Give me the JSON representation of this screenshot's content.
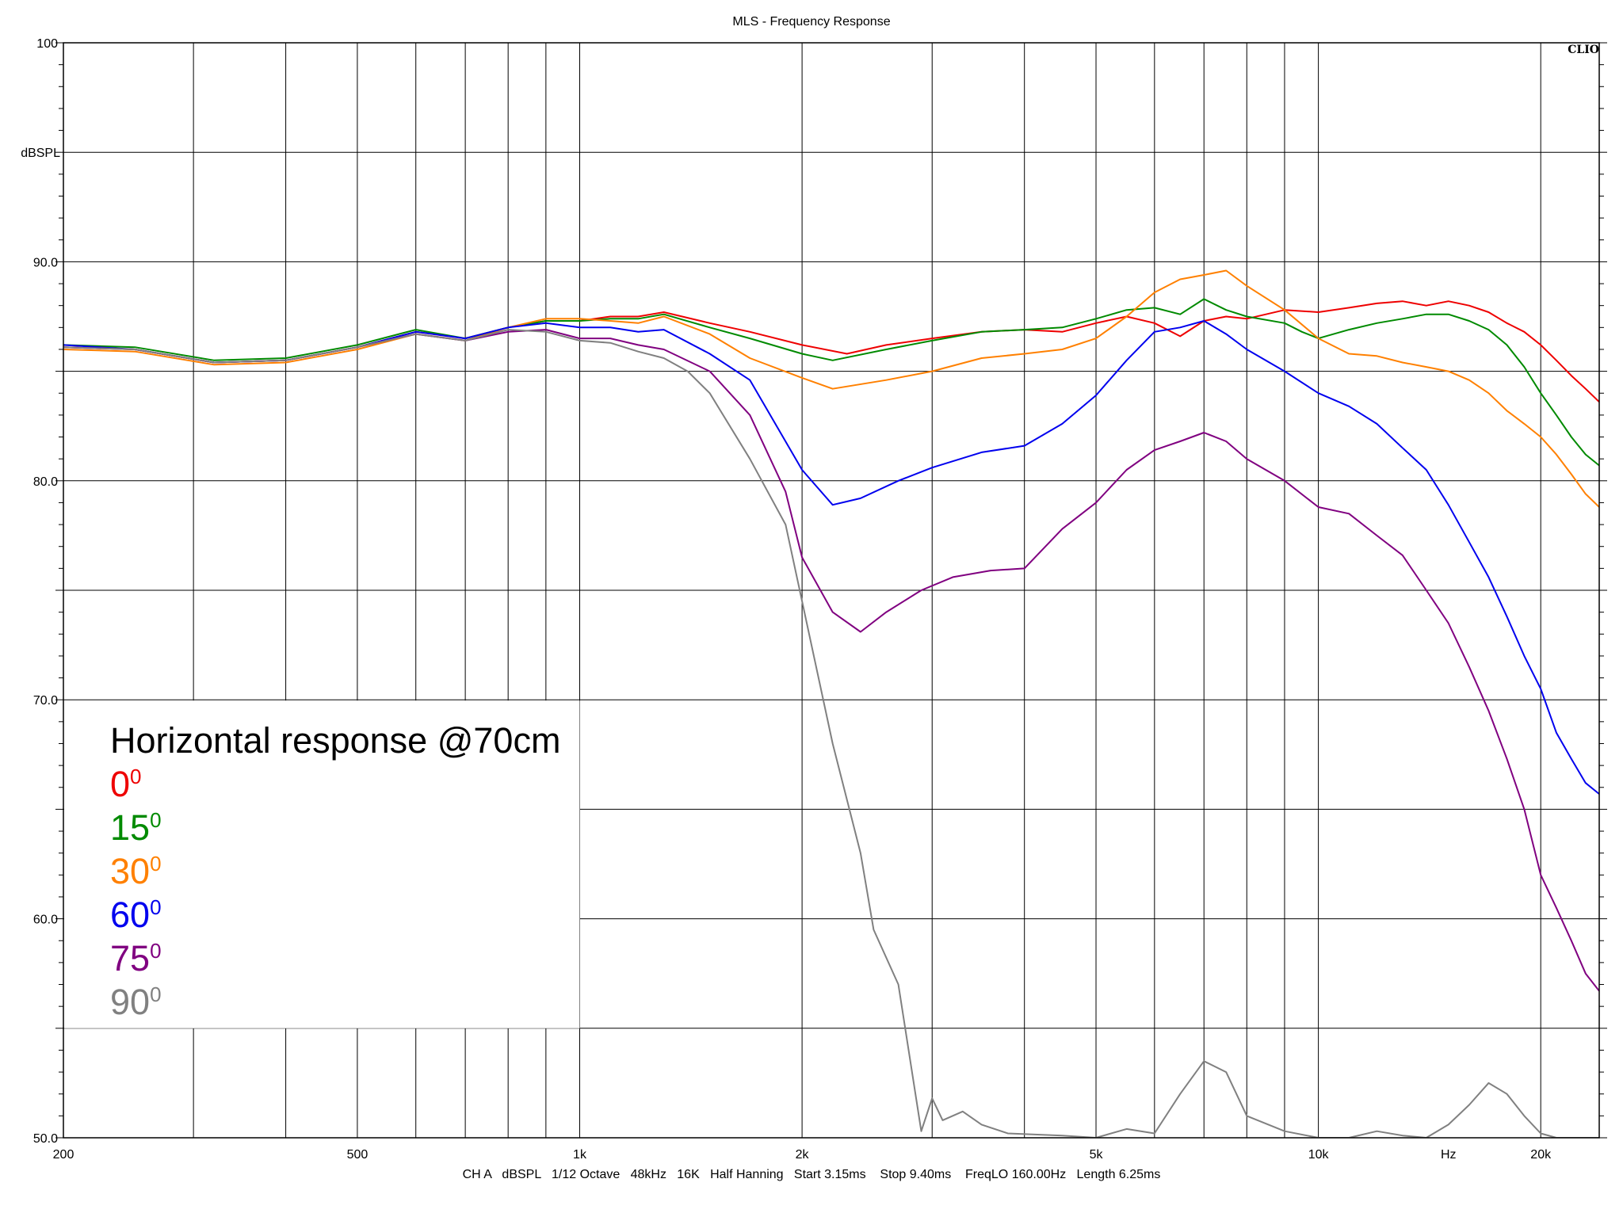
{
  "chart_data": {
    "type": "line",
    "title": "MLS - Frequency Response",
    "brand": "CLIO",
    "ylabel": "dBSPL",
    "xunit": "Hz",
    "xscale": "log",
    "xlim": [
      200,
      24000
    ],
    "ylim": [
      50,
      100
    ],
    "x_tick_labels": [
      {
        "value": 200,
        "label": "200"
      },
      {
        "value": 500,
        "label": "500"
      },
      {
        "value": 1000,
        "label": "1k"
      },
      {
        "value": 2000,
        "label": "2k"
      },
      {
        "value": 5000,
        "label": "5k"
      },
      {
        "value": 10000,
        "label": "10k"
      },
      {
        "value": 15000,
        "label": "Hz"
      },
      {
        "value": 20000,
        "label": "20k"
      }
    ],
    "y_tick_labels": [
      {
        "value": 100,
        "label": "100"
      },
      {
        "value": 90,
        "label": "90.0"
      },
      {
        "value": 80,
        "label": "80.0"
      },
      {
        "value": 70,
        "label": "70.0"
      },
      {
        "value": 60,
        "label": "60.0"
      },
      {
        "value": 50,
        "label": "50.0"
      }
    ],
    "footer": "CH A   dBSPL   1/12 Octave   48kHz   16K   Half Hanning   Start 3.15ms    Stop 9.40ms    FreqLO 160.00Hz   Length 6.25ms",
    "legend": {
      "title": "Horizontal response @70cm",
      "placement": "bottom-left"
    },
    "series": [
      {
        "name": "0",
        "sup": "0",
        "color": "#ee0000",
        "points": [
          [
            200,
            86.1
          ],
          [
            250,
            86.0
          ],
          [
            320,
            85.4
          ],
          [
            400,
            85.5
          ],
          [
            500,
            86.1
          ],
          [
            600,
            86.8
          ],
          [
            700,
            86.5
          ],
          [
            800,
            87.0
          ],
          [
            900,
            87.3
          ],
          [
            1000,
            87.3
          ],
          [
            1100,
            87.5
          ],
          [
            1200,
            87.5
          ],
          [
            1300,
            87.7
          ],
          [
            1500,
            87.2
          ],
          [
            1700,
            86.8
          ],
          [
            2000,
            86.2
          ],
          [
            2300,
            85.8
          ],
          [
            2600,
            86.2
          ],
          [
            3000,
            86.5
          ],
          [
            3500,
            86.8
          ],
          [
            4000,
            86.9
          ],
          [
            4500,
            86.8
          ],
          [
            5000,
            87.2
          ],
          [
            5500,
            87.5
          ],
          [
            6000,
            87.2
          ],
          [
            6500,
            86.6
          ],
          [
            7000,
            87.3
          ],
          [
            7500,
            87.5
          ],
          [
            8000,
            87.4
          ],
          [
            9000,
            87.8
          ],
          [
            10000,
            87.7
          ],
          [
            11000,
            87.9
          ],
          [
            12000,
            88.1
          ],
          [
            13000,
            88.2
          ],
          [
            14000,
            88.0
          ],
          [
            15000,
            88.2
          ],
          [
            16000,
            88.0
          ],
          [
            17000,
            87.7
          ],
          [
            18000,
            87.2
          ],
          [
            19000,
            86.8
          ],
          [
            20000,
            86.2
          ],
          [
            21000,
            85.5
          ],
          [
            22000,
            84.8
          ],
          [
            23000,
            84.2
          ],
          [
            24000,
            83.6
          ]
        ]
      },
      {
        "name": "15",
        "sup": "0",
        "color": "#008a00",
        "points": [
          [
            200,
            86.2
          ],
          [
            250,
            86.1
          ],
          [
            320,
            85.5
          ],
          [
            400,
            85.6
          ],
          [
            500,
            86.2
          ],
          [
            600,
            86.9
          ],
          [
            700,
            86.5
          ],
          [
            800,
            87.0
          ],
          [
            900,
            87.3
          ],
          [
            1000,
            87.3
          ],
          [
            1100,
            87.4
          ],
          [
            1200,
            87.4
          ],
          [
            1300,
            87.6
          ],
          [
            1500,
            87.0
          ],
          [
            1700,
            86.5
          ],
          [
            2000,
            85.8
          ],
          [
            2200,
            85.5
          ],
          [
            2600,
            86.0
          ],
          [
            3000,
            86.4
          ],
          [
            3500,
            86.8
          ],
          [
            4000,
            86.9
          ],
          [
            4500,
            87.0
          ],
          [
            5000,
            87.4
          ],
          [
            5500,
            87.8
          ],
          [
            6000,
            87.9
          ],
          [
            6500,
            87.6
          ],
          [
            7000,
            88.3
          ],
          [
            7500,
            87.8
          ],
          [
            8000,
            87.5
          ],
          [
            9000,
            87.2
          ],
          [
            9500,
            86.8
          ],
          [
            10000,
            86.5
          ],
          [
            11000,
            86.9
          ],
          [
            12000,
            87.2
          ],
          [
            13000,
            87.4
          ],
          [
            14000,
            87.6
          ],
          [
            15000,
            87.6
          ],
          [
            16000,
            87.3
          ],
          [
            17000,
            86.9
          ],
          [
            18000,
            86.2
          ],
          [
            19000,
            85.2
          ],
          [
            20000,
            84.0
          ],
          [
            21000,
            83.0
          ],
          [
            22000,
            82.0
          ],
          [
            23000,
            81.2
          ],
          [
            24000,
            80.7
          ]
        ]
      },
      {
        "name": "30",
        "sup": "0",
        "color": "#ff8000",
        "points": [
          [
            200,
            86.0
          ],
          [
            250,
            85.9
          ],
          [
            320,
            85.3
          ],
          [
            400,
            85.4
          ],
          [
            500,
            86.0
          ],
          [
            600,
            86.7
          ],
          [
            700,
            86.4
          ],
          [
            800,
            87.0
          ],
          [
            900,
            87.4
          ],
          [
            1000,
            87.4
          ],
          [
            1100,
            87.3
          ],
          [
            1200,
            87.2
          ],
          [
            1300,
            87.5
          ],
          [
            1500,
            86.7
          ],
          [
            1700,
            85.6
          ],
          [
            2000,
            84.7
          ],
          [
            2200,
            84.2
          ],
          [
            2600,
            84.6
          ],
          [
            3000,
            85.0
          ],
          [
            3500,
            85.6
          ],
          [
            4000,
            85.8
          ],
          [
            4500,
            86.0
          ],
          [
            5000,
            86.5
          ],
          [
            5500,
            87.5
          ],
          [
            6000,
            88.6
          ],
          [
            6500,
            89.2
          ],
          [
            7000,
            89.4
          ],
          [
            7500,
            89.6
          ],
          [
            8000,
            88.9
          ],
          [
            9000,
            87.8
          ],
          [
            10000,
            86.5
          ],
          [
            11000,
            85.8
          ],
          [
            12000,
            85.7
          ],
          [
            13000,
            85.4
          ],
          [
            14000,
            85.2
          ],
          [
            15000,
            85.0
          ],
          [
            16000,
            84.6
          ],
          [
            17000,
            84.0
          ],
          [
            18000,
            83.2
          ],
          [
            19000,
            82.6
          ],
          [
            20000,
            82.0
          ],
          [
            21000,
            81.2
          ],
          [
            22000,
            80.3
          ],
          [
            23000,
            79.4
          ],
          [
            24000,
            78.8
          ]
        ]
      },
      {
        "name": "60",
        "sup": "0",
        "color": "#0000ee",
        "points": [
          [
            200,
            86.2
          ],
          [
            250,
            86.0
          ],
          [
            320,
            85.4
          ],
          [
            400,
            85.5
          ],
          [
            500,
            86.1
          ],
          [
            600,
            86.8
          ],
          [
            700,
            86.5
          ],
          [
            800,
            87.0
          ],
          [
            900,
            87.2
          ],
          [
            1000,
            87.0
          ],
          [
            1100,
            87.0
          ],
          [
            1200,
            86.8
          ],
          [
            1300,
            86.9
          ],
          [
            1500,
            85.8
          ],
          [
            1700,
            84.6
          ],
          [
            2000,
            80.5
          ],
          [
            2200,
            78.9
          ],
          [
            2400,
            79.2
          ],
          [
            2700,
            80.0
          ],
          [
            3000,
            80.6
          ],
          [
            3500,
            81.3
          ],
          [
            4000,
            81.6
          ],
          [
            4500,
            82.6
          ],
          [
            5000,
            83.9
          ],
          [
            5500,
            85.5
          ],
          [
            6000,
            86.8
          ],
          [
            6500,
            87.0
          ],
          [
            7000,
            87.3
          ],
          [
            7500,
            86.7
          ],
          [
            8000,
            86.0
          ],
          [
            9000,
            85.0
          ],
          [
            10000,
            84.0
          ],
          [
            11000,
            83.4
          ],
          [
            12000,
            82.6
          ],
          [
            13000,
            81.5
          ],
          [
            14000,
            80.5
          ],
          [
            15000,
            78.9
          ],
          [
            16000,
            77.2
          ],
          [
            17000,
            75.6
          ],
          [
            18000,
            73.8
          ],
          [
            19000,
            72.0
          ],
          [
            20000,
            70.5
          ],
          [
            21000,
            68.5
          ],
          [
            22000,
            67.3
          ],
          [
            23000,
            66.2
          ],
          [
            24000,
            65.7
          ]
        ]
      },
      {
        "name": "75",
        "sup": "0",
        "color": "#800080",
        "points": [
          [
            200,
            86.1
          ],
          [
            250,
            86.0
          ],
          [
            320,
            85.4
          ],
          [
            400,
            85.5
          ],
          [
            500,
            86.1
          ],
          [
            600,
            86.7
          ],
          [
            700,
            86.4
          ],
          [
            800,
            86.8
          ],
          [
            900,
            86.9
          ],
          [
            1000,
            86.5
          ],
          [
            1100,
            86.5
          ],
          [
            1200,
            86.2
          ],
          [
            1300,
            86.0
          ],
          [
            1500,
            85.0
          ],
          [
            1700,
            83.0
          ],
          [
            1900,
            79.5
          ],
          [
            2000,
            76.5
          ],
          [
            2200,
            74.0
          ],
          [
            2400,
            73.1
          ],
          [
            2600,
            74.0
          ],
          [
            2900,
            75.0
          ],
          [
            3200,
            75.6
          ],
          [
            3600,
            75.9
          ],
          [
            4000,
            76.0
          ],
          [
            4500,
            77.8
          ],
          [
            5000,
            79.0
          ],
          [
            5500,
            80.5
          ],
          [
            6000,
            81.4
          ],
          [
            6500,
            81.8
          ],
          [
            7000,
            82.2
          ],
          [
            7500,
            81.8
          ],
          [
            8000,
            81.0
          ],
          [
            9000,
            80.0
          ],
          [
            10000,
            78.8
          ],
          [
            11000,
            78.5
          ],
          [
            12000,
            77.5
          ],
          [
            13000,
            76.6
          ],
          [
            14000,
            75.0
          ],
          [
            15000,
            73.5
          ],
          [
            16000,
            71.5
          ],
          [
            17000,
            69.5
          ],
          [
            18000,
            67.3
          ],
          [
            19000,
            65.0
          ],
          [
            20000,
            62.0
          ],
          [
            21000,
            60.5
          ],
          [
            22000,
            59.0
          ],
          [
            23000,
            57.5
          ],
          [
            24000,
            56.7
          ]
        ]
      },
      {
        "name": "90",
        "sup": "0",
        "color": "#808080",
        "points": [
          [
            200,
            86.1
          ],
          [
            250,
            86.0
          ],
          [
            320,
            85.4
          ],
          [
            400,
            85.5
          ],
          [
            500,
            86.1
          ],
          [
            600,
            86.7
          ],
          [
            700,
            86.4
          ],
          [
            800,
            86.9
          ],
          [
            900,
            86.8
          ],
          [
            1000,
            86.4
          ],
          [
            1100,
            86.3
          ],
          [
            1200,
            85.9
          ],
          [
            1300,
            85.6
          ],
          [
            1400,
            85.0
          ],
          [
            1500,
            84.0
          ],
          [
            1700,
            81.0
          ],
          [
            1900,
            78.0
          ],
          [
            2000,
            74.5
          ],
          [
            2200,
            68.0
          ],
          [
            2400,
            63.0
          ],
          [
            2500,
            59.5
          ],
          [
            2700,
            57.0
          ],
          [
            2900,
            50.3
          ],
          [
            3000,
            51.8
          ],
          [
            3100,
            50.8
          ],
          [
            3300,
            51.2
          ],
          [
            3500,
            50.6
          ],
          [
            3800,
            50.2
          ],
          [
            4500,
            50.1
          ],
          [
            5000,
            50.0
          ],
          [
            5500,
            50.4
          ],
          [
            6000,
            50.2
          ],
          [
            6500,
            52.0
          ],
          [
            7000,
            53.5
          ],
          [
            7500,
            53.0
          ],
          [
            8000,
            51.0
          ],
          [
            9000,
            50.3
          ],
          [
            10000,
            50.0
          ],
          [
            11000,
            50.0
          ],
          [
            12000,
            50.3
          ],
          [
            13000,
            50.1
          ],
          [
            14000,
            50.0
          ],
          [
            15000,
            50.6
          ],
          [
            16000,
            51.5
          ],
          [
            17000,
            52.5
          ],
          [
            18000,
            52.0
          ],
          [
            19000,
            51.0
          ],
          [
            20000,
            50.2
          ],
          [
            21000,
            50.0
          ],
          [
            22000,
            50.0
          ],
          [
            23000,
            50.0
          ],
          [
            24000,
            50.0
          ]
        ]
      }
    ]
  }
}
